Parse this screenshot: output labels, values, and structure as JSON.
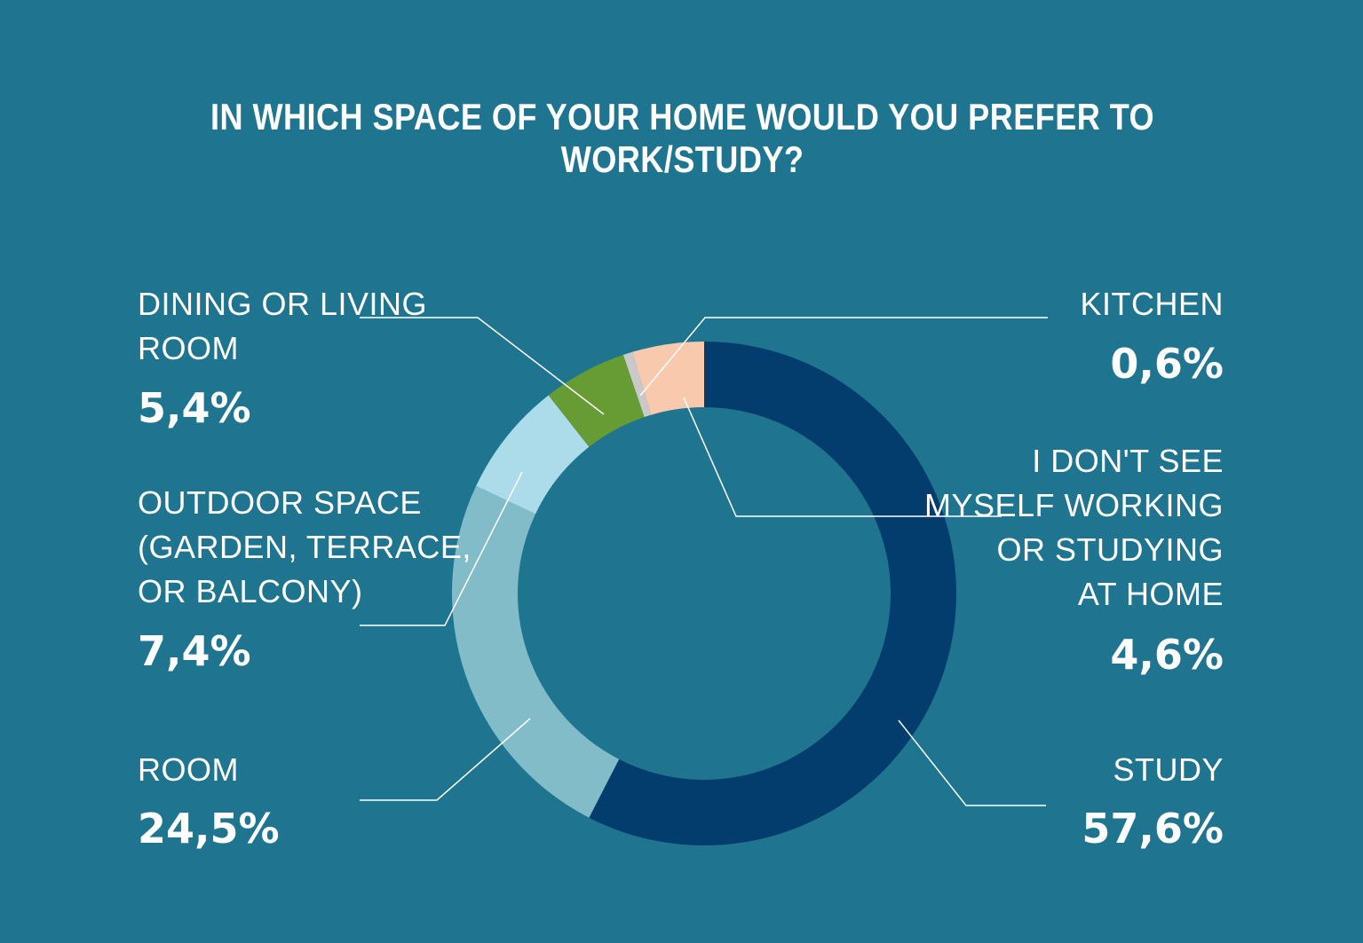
{
  "colors": {
    "background": "#1f758f",
    "study": "#033d6d",
    "room": "#82bcc8",
    "outdoor": "#acdbea",
    "dining": "#669c33",
    "kitchen": "#c9c9c9",
    "no_home": "#f8c9ac",
    "leader": "#ffffff"
  },
  "chart_data": {
    "type": "pie",
    "title": "IN WHICH SPACE OF YOUR HOME WOULD YOU PREFER TO WORK/STUDY?",
    "series": [
      {
        "name": "STUDY",
        "value": 57.6,
        "display": "57,6%",
        "color": "#033d6d"
      },
      {
        "name": "ROOM",
        "value": 24.5,
        "display": "24,5%",
        "color": "#82bcc8"
      },
      {
        "name": "OUTDOOR SPACE (GARDEN, TERRACE, OR BALCONY)",
        "value": 7.4,
        "display": "7,4%",
        "color": "#acdbea"
      },
      {
        "name": "DINING OR LIVING ROOM",
        "value": 5.4,
        "display": "5,4%",
        "color": "#669c33"
      },
      {
        "name": "KITCHEN",
        "value": 0.6,
        "display": "0,6%",
        "color": "#c9c9c9"
      },
      {
        "name": "I DON'T SEE MYSELF WORKING OR STUDYING AT HOME",
        "value": 4.6,
        "display": "4,6%",
        "color": "#f8c9ac"
      }
    ]
  },
  "labels": {
    "dining": {
      "text": "DINING OR LIVING\nROOM",
      "value": "5,4%"
    },
    "outdoor": {
      "text": "OUTDOOR SPACE\n(GARDEN, TERRACE,\nOR BALCONY)",
      "value": "7,4%"
    },
    "room": {
      "text": "ROOM",
      "value": "24,5%"
    },
    "kitchen": {
      "text": "KITCHEN",
      "value": "0,6%"
    },
    "no_home": {
      "text": "I DON'T SEE\nMYSELF WORKING\nOR STUDYING\nAT HOME",
      "value": "4,6%"
    },
    "study": {
      "text": "STUDY",
      "value": "57,6%"
    }
  }
}
